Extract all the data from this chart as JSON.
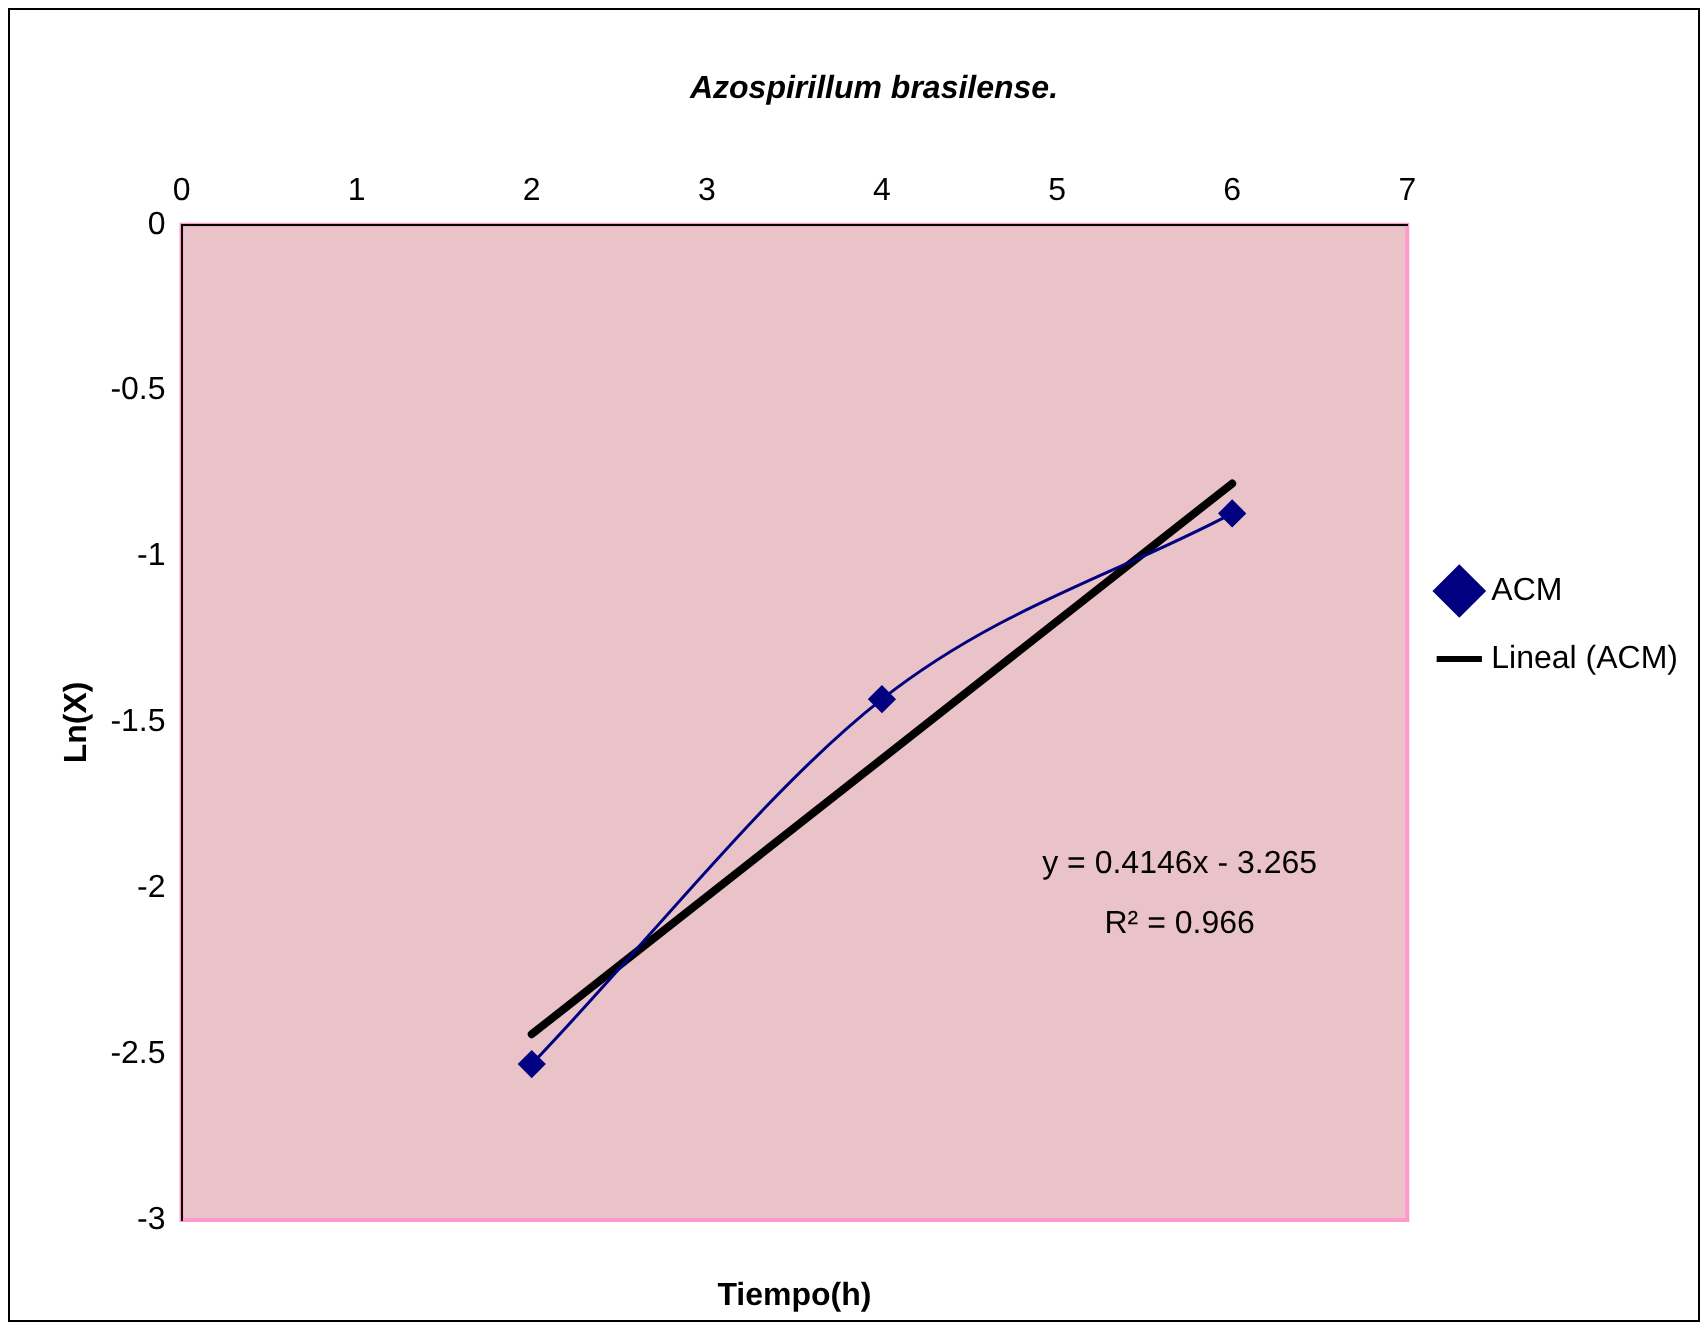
{
  "chart_data": {
    "type": "line",
    "title": "Azospirillum brasilense.",
    "xlabel": "Tiempo(h)",
    "ylabel": "Ln(X)",
    "x": [
      2,
      4,
      6
    ],
    "series": [
      {
        "name": "ACM",
        "color": "#000080",
        "values": [
          -2.53,
          -1.43,
          -0.87
        ],
        "marker": "diamond"
      },
      {
        "name": "Lineal (ACM)",
        "color": "#000000",
        "type": "line",
        "x": [
          2,
          6
        ],
        "values": [
          -2.44,
          -0.78
        ],
        "marker": "none"
      }
    ],
    "xlim": [
      0,
      7
    ],
    "xticks": [
      0,
      1,
      2,
      3,
      4,
      5,
      6,
      7
    ],
    "ylim": [
      -3,
      0
    ],
    "yticks": [
      0,
      -0.5,
      -1,
      -1.5,
      -2,
      -2.5,
      -3
    ],
    "grid": false,
    "legend": "right",
    "annotations": [
      "y = 0.4146x - 3.265",
      "R² = 0.966"
    ]
  }
}
